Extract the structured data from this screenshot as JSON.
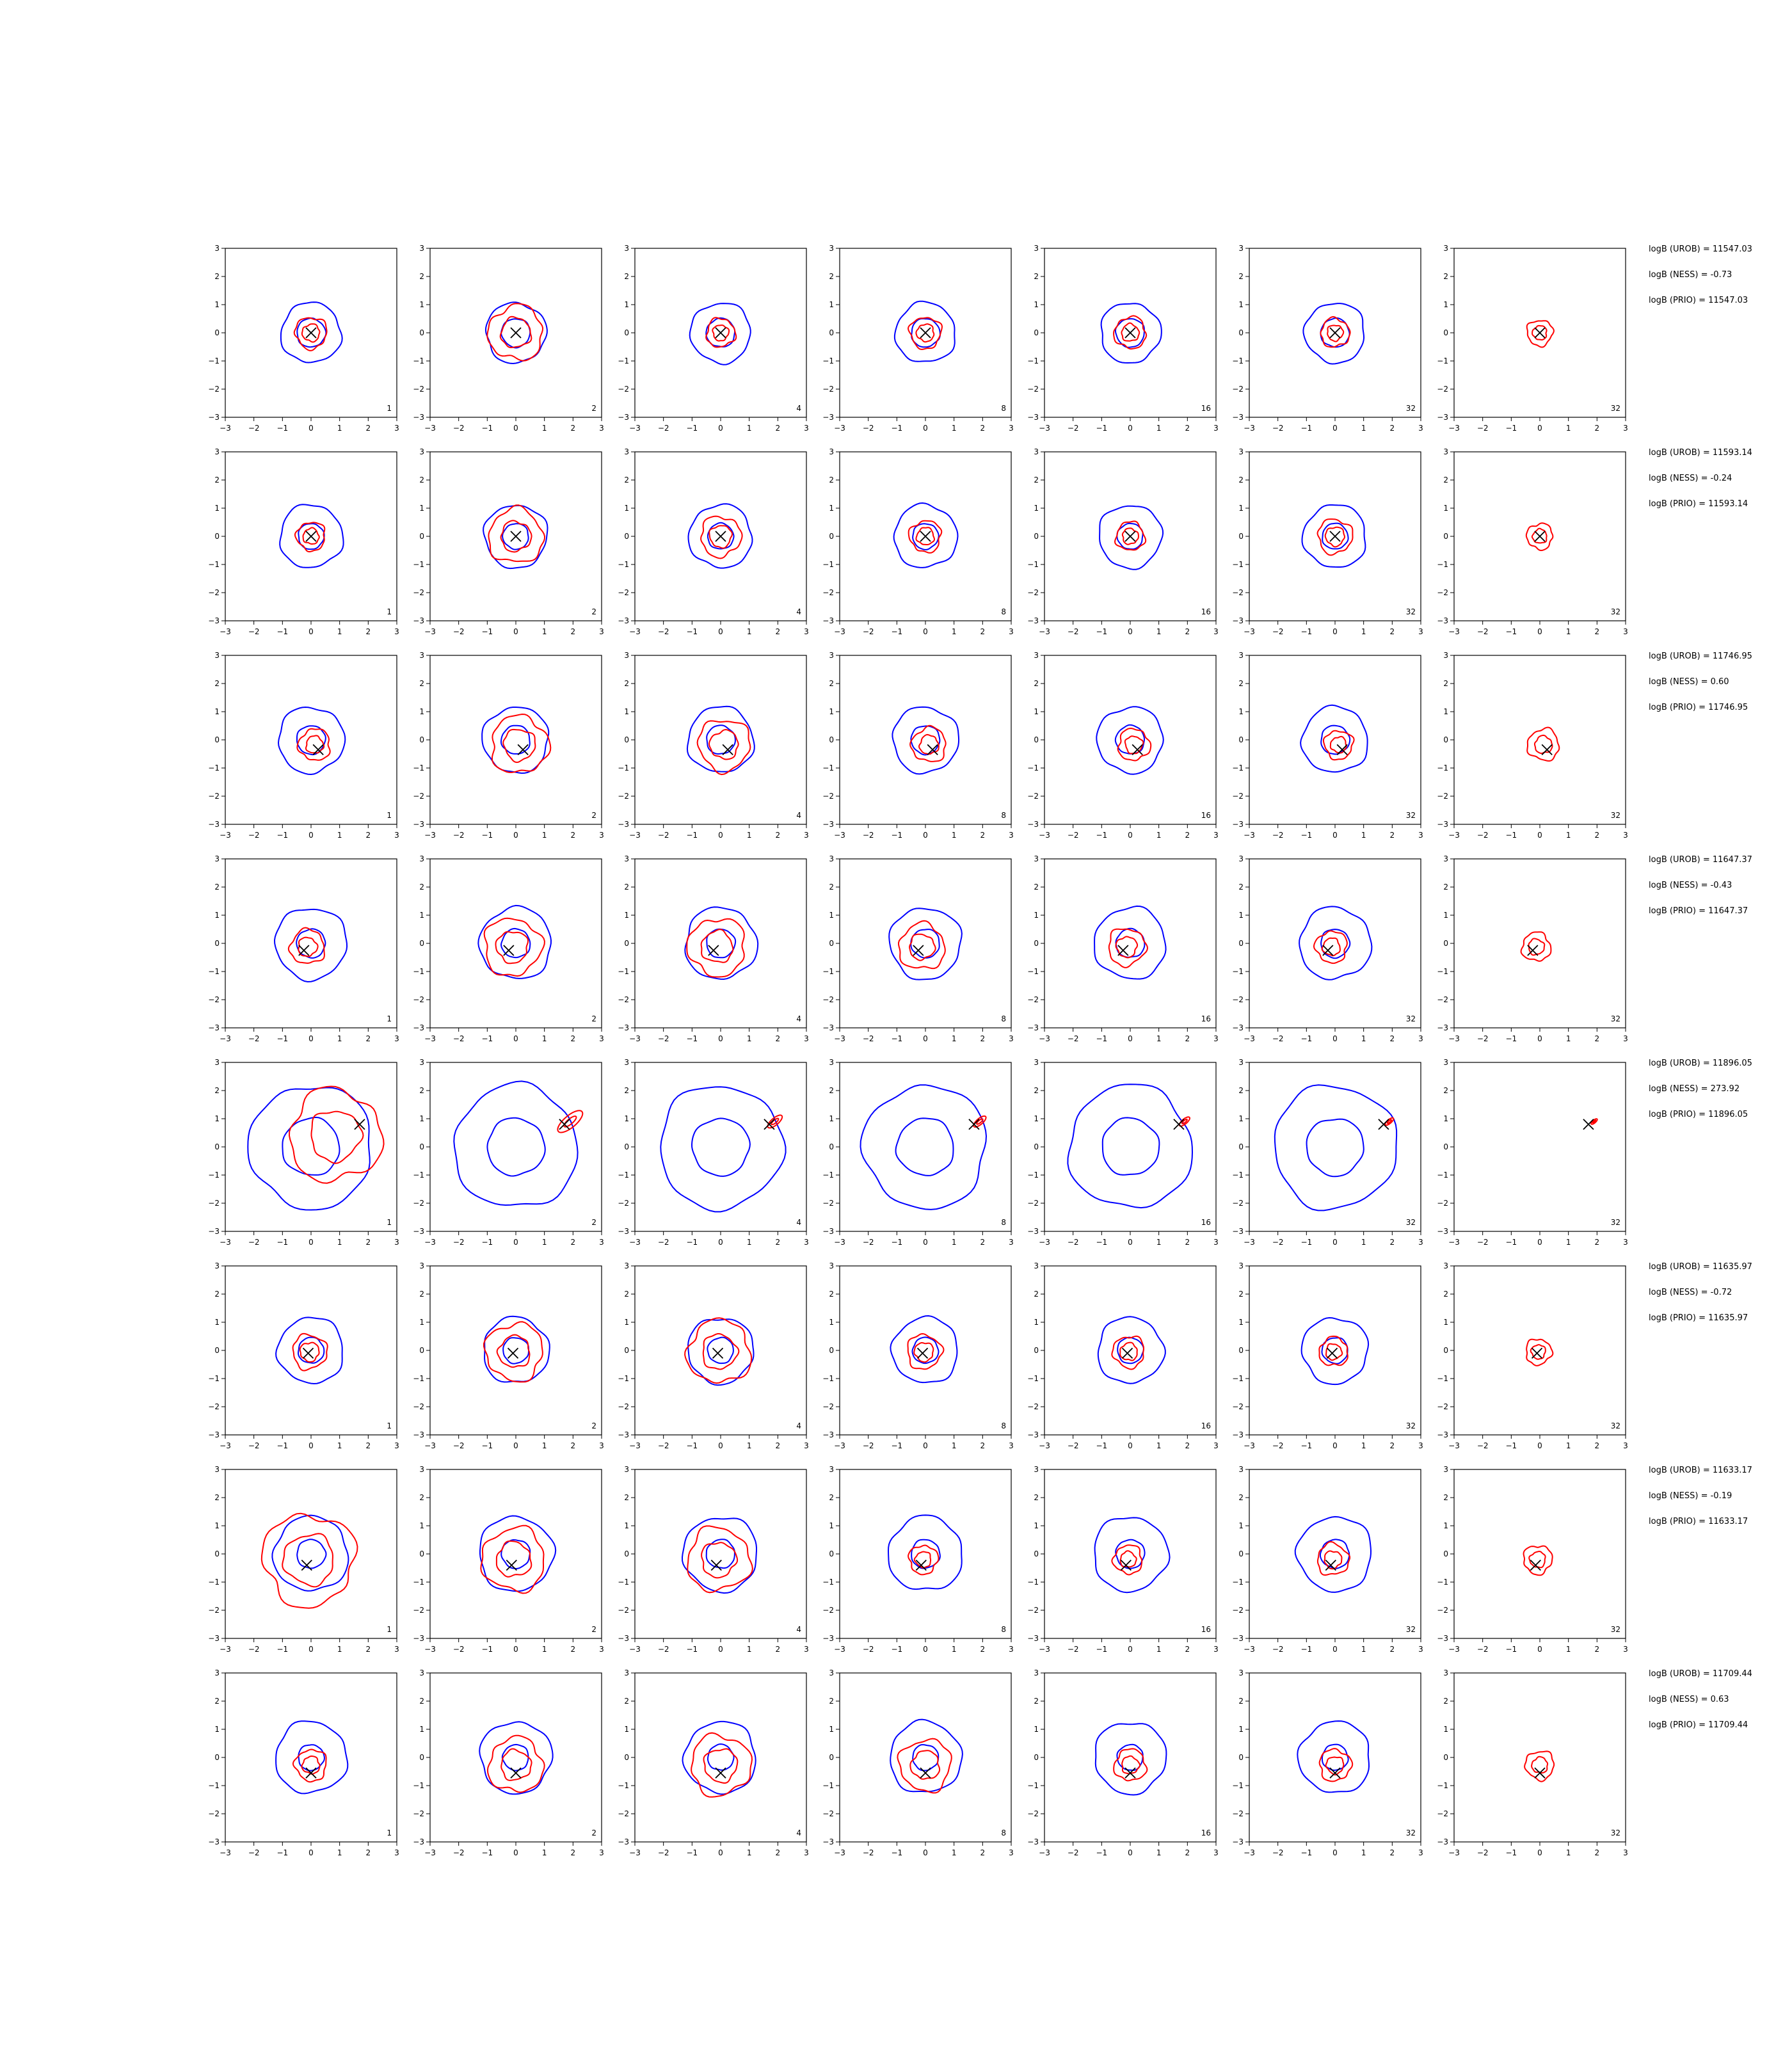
{
  "chart_data": {
    "type": "contour",
    "xlim": [
      -3,
      3
    ],
    "ylim": [
      -3,
      3
    ],
    "ticks": [
      "−3",
      "−2",
      "−1",
      "0",
      "1",
      "2",
      "3"
    ],
    "grid": false,
    "colors": {
      "blue_contour": "#0000ff",
      "red_contour": "#ff0000",
      "marker": "#000000"
    },
    "column_labels": [
      "1",
      "2",
      "4",
      "8",
      "16",
      "32",
      "32"
    ],
    "rows": [
      {
        "marker": [
          0,
          0
        ],
        "blue_inner_r": 0.5,
        "blue_outer_r": 1.05,
        "red_ring_r": [
          0.55,
          0.95,
          0.5,
          0.55,
          0.55,
          0.5,
          0.45
        ],
        "annotations": [
          "logB (UROB) = 11547.03",
          "logB (NESS) = -0.73",
          "logB (PRIO) = 11547.03"
        ]
      },
      {
        "marker": [
          0,
          0
        ],
        "blue_inner_r": 0.45,
        "blue_outer_r": 1.1,
        "red_ring_r": [
          0.5,
          0.95,
          0.7,
          0.55,
          0.5,
          0.6,
          0.45
        ],
        "annotations": [
          "logB (UROB) = 11593.14",
          "logB (NESS) = -0.24",
          "logB (PRIO) = 11593.14"
        ]
      },
      {
        "marker": [
          0.25,
          -0.35
        ],
        "blue_inner_r": 0.5,
        "blue_outer_r": 1.15,
        "red_ring_r": [
          0.55,
          1.0,
          0.9,
          0.6,
          0.55,
          0.5,
          0.55
        ],
        "annotations": [
          "logB (UROB) = 11746.95",
          "logB (NESS) = 0.60",
          "logB (PRIO) = 11746.95"
        ]
      },
      {
        "marker": [
          -0.25,
          -0.25
        ],
        "blue_inner_r": 0.5,
        "blue_outer_r": 1.25,
        "red_ring_r": [
          0.6,
          1.0,
          1.0,
          0.8,
          0.65,
          0.55,
          0.5
        ],
        "annotations": [
          "logB (UROB) = 11647.37",
          "logB (NESS) = -0.43",
          "logB (PRIO) = 11647.37"
        ]
      },
      {
        "marker": [
          1.7,
          0.8
        ],
        "blue_inner_r": 1.0,
        "blue_outer_r": 2.15,
        "red_ring_r": [
          1.6,
          0.6,
          0.35,
          0.3,
          0.25,
          0.2,
          0.15
        ],
        "annotations": [
          "logB (UROB) = 11896.05",
          "logB (NESS) = 273.92",
          "logB (PRIO) = 11896.05"
        ]
      },
      {
        "marker": [
          -0.1,
          -0.1
        ],
        "blue_inner_r": 0.45,
        "blue_outer_r": 1.15,
        "red_ring_r": [
          0.6,
          1.0,
          1.1,
          0.6,
          0.55,
          0.5,
          0.45
        ],
        "annotations": [
          "logB (UROB) = 11635.97",
          "logB (NESS) = -0.72",
          "logB (PRIO) = 11635.97"
        ]
      },
      {
        "marker": [
          -0.15,
          -0.4
        ],
        "blue_inner_r": 0.5,
        "blue_outer_r": 1.3,
        "red_ring_r": [
          1.6,
          1.1,
          1.1,
          0.5,
          0.5,
          0.55,
          0.5
        ],
        "annotations": [
          "logB (UROB) = 11633.17",
          "logB (NESS) = -0.19",
          "logB (PRIO) = 11633.17"
        ]
      },
      {
        "marker": [
          0,
          -0.55
        ],
        "blue_inner_r": 0.45,
        "blue_outer_r": 1.25,
        "red_ring_r": [
          0.55,
          0.95,
          1.05,
          0.9,
          0.55,
          0.55,
          0.5
        ],
        "annotations": [
          "logB (UROB) = 11709.44",
          "logB (NESS) = 0.63",
          "logB (PRIO) = 11709.44"
        ]
      }
    ]
  }
}
